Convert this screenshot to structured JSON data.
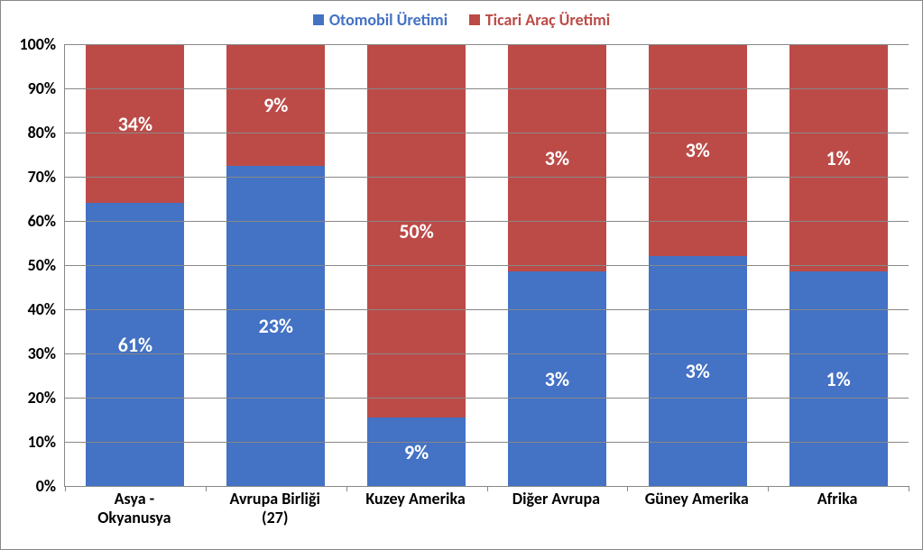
{
  "chart": {
    "type": "stacked-bar-100pct",
    "background_color": "#ffffff",
    "grid_color": "#888888",
    "font_family": "Calibri",
    "label_fontsize": 18,
    "data_label_fontsize": 22,
    "legend_fontsize": 18,
    "colors": {
      "series_a": "#4472c4",
      "series_b": "#bc4b48"
    },
    "series": [
      {
        "key": "series_a",
        "label": "Otomobil Üretimi"
      },
      {
        "key": "series_b",
        "label": "Ticari Araç Üretimi"
      }
    ],
    "y": {
      "min": 0,
      "max": 100,
      "step": 10,
      "format_suffix": "%",
      "ticks": [
        "0%",
        "10%",
        "20%",
        "30%",
        "40%",
        "50%",
        "60%",
        "70%",
        "80%",
        "90%",
        "100%"
      ]
    },
    "categories": [
      {
        "label_line1": "Asya -",
        "label_line2": "Okyanusya",
        "a_height_pct": 64,
        "b_height_pct": 36,
        "a_text": "61%",
        "b_text": "34%"
      },
      {
        "label_line1": "Avrupa Birliği",
        "label_line2": "(27)",
        "a_height_pct": 72.5,
        "b_height_pct": 27.5,
        "a_text": "23%",
        "b_text": "9%"
      },
      {
        "label_line1": "Kuzey Amerika",
        "label_line2": "",
        "a_height_pct": 15.5,
        "b_height_pct": 84.5,
        "a_text": "9%",
        "b_text": "50%"
      },
      {
        "label_line1": "Diğer Avrupa",
        "label_line2": "",
        "a_height_pct": 48.5,
        "b_height_pct": 51.5,
        "a_text": "3%",
        "b_text": "3%"
      },
      {
        "label_line1": "Güney Amerika",
        "label_line2": "",
        "a_height_pct": 52,
        "b_height_pct": 48,
        "a_text": "3%",
        "b_text": "3%"
      },
      {
        "label_line1": "Afrika",
        "label_line2": "",
        "a_height_pct": 48.5,
        "b_height_pct": 51.5,
        "a_text": "1%",
        "b_text": "1%"
      }
    ]
  }
}
